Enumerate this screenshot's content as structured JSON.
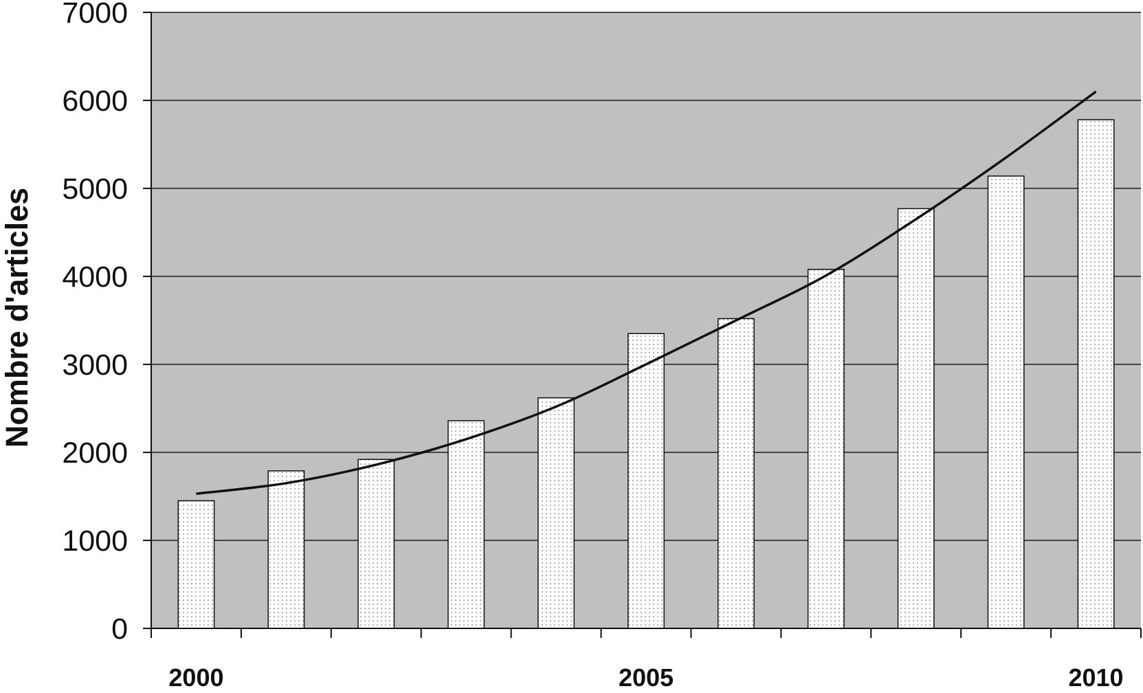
{
  "chart_data": {
    "type": "bar",
    "categories": [
      "2000",
      "2001",
      "2002",
      "2003",
      "2004",
      "2005",
      "2006",
      "2007",
      "2008",
      "2009",
      "2010"
    ],
    "x_tick_labels": [
      "2000",
      "2005",
      "2010"
    ],
    "series": [
      {
        "type": "bar",
        "values": [
          1450,
          1790,
          1920,
          2360,
          2620,
          3350,
          3520,
          4080,
          4770,
          5140,
          5780
        ]
      },
      {
        "type": "trendline",
        "values": [
          1530,
          1650,
          1860,
          2150,
          2520,
          3000,
          3500,
          4010,
          4650,
          5350,
          6100
        ]
      }
    ],
    "ylabel": "Nombre d'articles",
    "xlabel": "",
    "ylim": [
      0,
      7000
    ],
    "yticks": [
      0,
      1000,
      2000,
      3000,
      4000,
      5000,
      6000,
      7000
    ],
    "grid": true,
    "plot_background": "#c0c0c0",
    "bar_fill": "dotted-white",
    "line_color": "#111111"
  }
}
